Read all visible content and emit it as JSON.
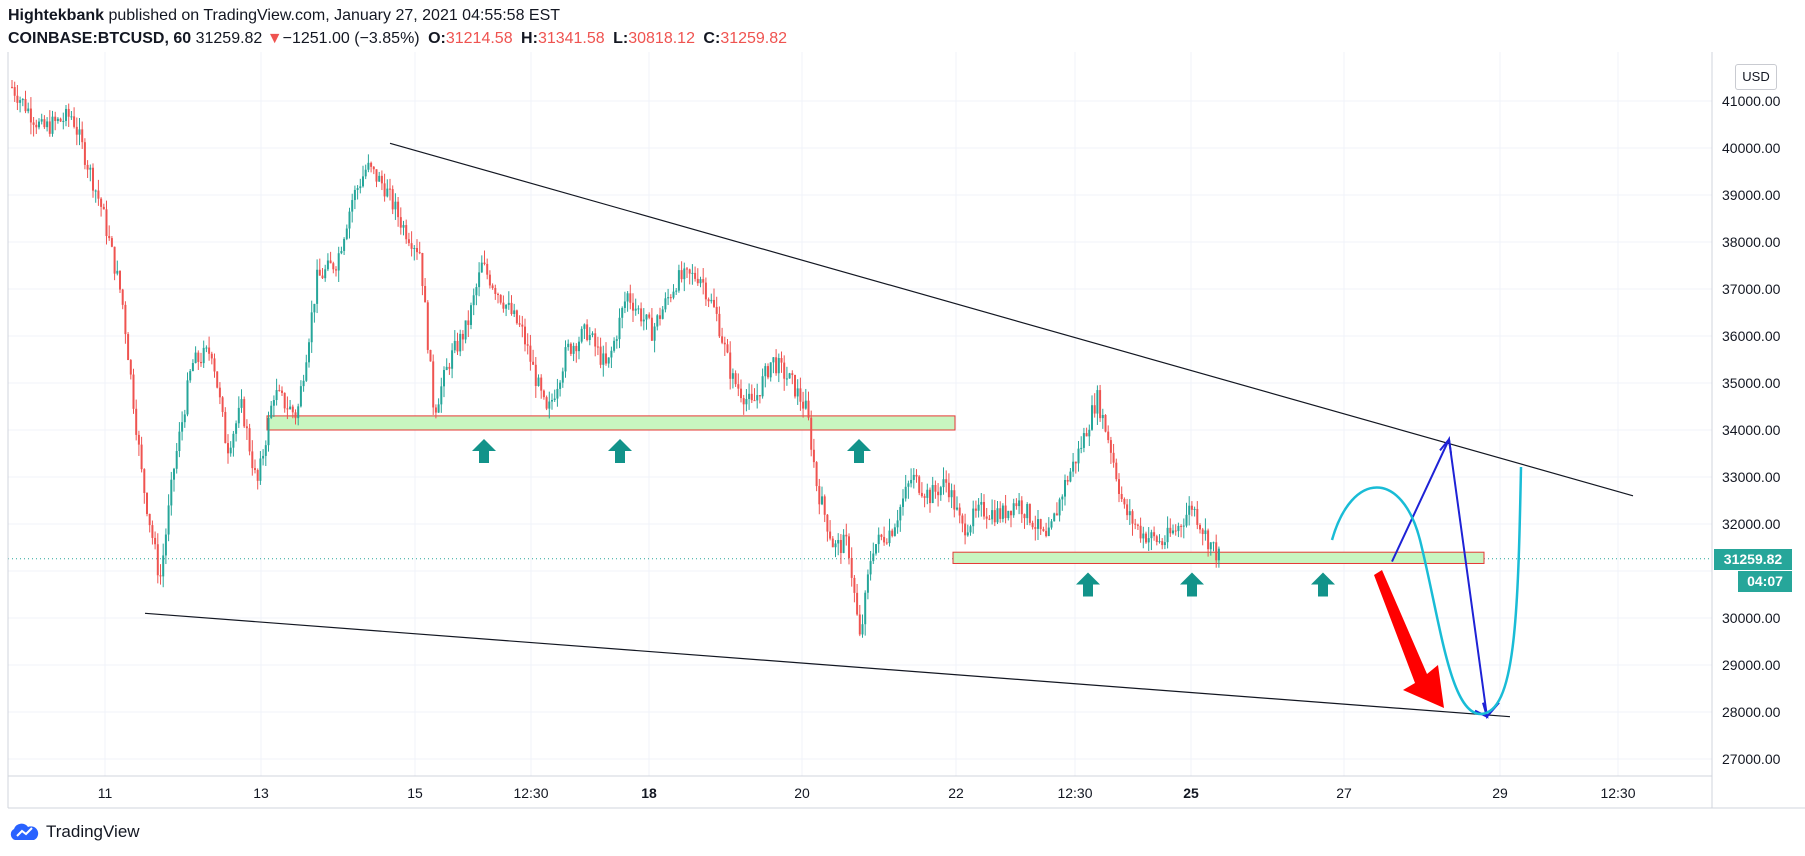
{
  "header": {
    "publisher": "Hightekbank",
    "published_text": " published on TradingView.com, January 27, 2021 04:55:58 EST",
    "symbol": "COINBASE:BTCUSD, 60",
    "last": "31259.82",
    "change_arrow": "▼",
    "change": "−1251.00 (−3.85%)",
    "o_label": "O:",
    "o_value": "31214.58",
    "h_label": "H:",
    "h_value": "31341.58",
    "l_label": "L:",
    "l_value": "30818.12",
    "c_label": "C:",
    "c_value": "31259.82"
  },
  "currency_button": "USD",
  "last_price_tag": "31259.82",
  "countdown_tag": "04:07",
  "branding": "TradingView",
  "colors": {
    "up": "#26a69a",
    "down": "#ef5350",
    "support_fill": "#c8f5c0",
    "support_border": "#e53935",
    "arrow_teal": "#12938a",
    "projection_blue": "#1e22d6",
    "projection_cyan": "#19bcd6",
    "bear_arrow": "#ff0000"
  },
  "chart_data": {
    "type": "candlestick",
    "interval_minutes": 60,
    "x_ticks": [
      "11",
      "13",
      "15",
      "12:30",
      "18",
      "20",
      "22",
      "12:30",
      "25",
      "27",
      "29",
      "12:30"
    ],
    "bold_ticks": [
      "18",
      "25"
    ],
    "y_ticks": [
      41000,
      40000,
      39000,
      38000,
      37000,
      36000,
      35000,
      34000,
      33000,
      32000,
      31000,
      30000,
      29000,
      28000,
      27000
    ],
    "ylim": [
      26500,
      42000
    ],
    "last_price": 31259.82,
    "ohlc_last": {
      "open": 31214.58,
      "high": 31341.58,
      "low": 30818.12,
      "close": 31259.82
    },
    "approx_path": [
      [
        0,
        41300
      ],
      [
        30,
        40400
      ],
      [
        60,
        40700
      ],
      [
        90,
        38700
      ],
      [
        110,
        36800
      ],
      [
        130,
        33000
      ],
      [
        148,
        30800
      ],
      [
        162,
        33200
      ],
      [
        180,
        35400
      ],
      [
        200,
        35700
      ],
      [
        215,
        33600
      ],
      [
        230,
        34500
      ],
      [
        245,
        32800
      ],
      [
        262,
        34800
      ],
      [
        285,
        34300
      ],
      [
        305,
        37200
      ],
      [
        325,
        37600
      ],
      [
        340,
        38900
      ],
      [
        355,
        39600
      ],
      [
        372,
        39200
      ],
      [
        392,
        38300
      ],
      [
        408,
        37800
      ],
      [
        422,
        34400
      ],
      [
        438,
        35500
      ],
      [
        455,
        36200
      ],
      [
        470,
        37500
      ],
      [
        490,
        36800
      ],
      [
        510,
        36100
      ],
      [
        535,
        34300
      ],
      [
        555,
        35700
      ],
      [
        575,
        36100
      ],
      [
        595,
        35300
      ],
      [
        615,
        36900
      ],
      [
        640,
        36100
      ],
      [
        665,
        37200
      ],
      [
        688,
        37300
      ],
      [
        705,
        36400
      ],
      [
        720,
        35100
      ],
      [
        740,
        34500
      ],
      [
        760,
        35500
      ],
      [
        780,
        35000
      ],
      [
        795,
        34400
      ],
      [
        805,
        32800
      ],
      [
        822,
        31500
      ],
      [
        836,
        31600
      ],
      [
        848,
        29500
      ],
      [
        860,
        31500
      ],
      [
        880,
        31900
      ],
      [
        900,
        33000
      ],
      [
        918,
        32600
      ],
      [
        935,
        32900
      ],
      [
        950,
        31900
      ],
      [
        970,
        32300
      ],
      [
        990,
        32200
      ],
      [
        1005,
        32500
      ],
      [
        1020,
        32100
      ],
      [
        1035,
        31600
      ],
      [
        1052,
        32800
      ],
      [
        1068,
        33600
      ],
      [
        1085,
        34700
      ],
      [
        1098,
        33700
      ],
      [
        1112,
        32300
      ],
      [
        1130,
        31800
      ],
      [
        1150,
        31600
      ],
      [
        1165,
        31900
      ],
      [
        1180,
        32400
      ],
      [
        1195,
        31700
      ],
      [
        1208,
        31260
      ]
    ],
    "support_zones": [
      {
        "low": 34000,
        "high": 34300
      },
      {
        "low": 31160,
        "high": 31400
      }
    ],
    "trendlines": {
      "upper": [
        [
          40100,
          "Jan 14"
        ],
        [
          32600,
          "Jan 29"
        ]
      ],
      "lower": [
        [
          30100,
          "Jan 11"
        ],
        [
          27900,
          "Jan 29"
        ]
      ]
    },
    "projection_low": 27900,
    "projection_high": 33800
  }
}
